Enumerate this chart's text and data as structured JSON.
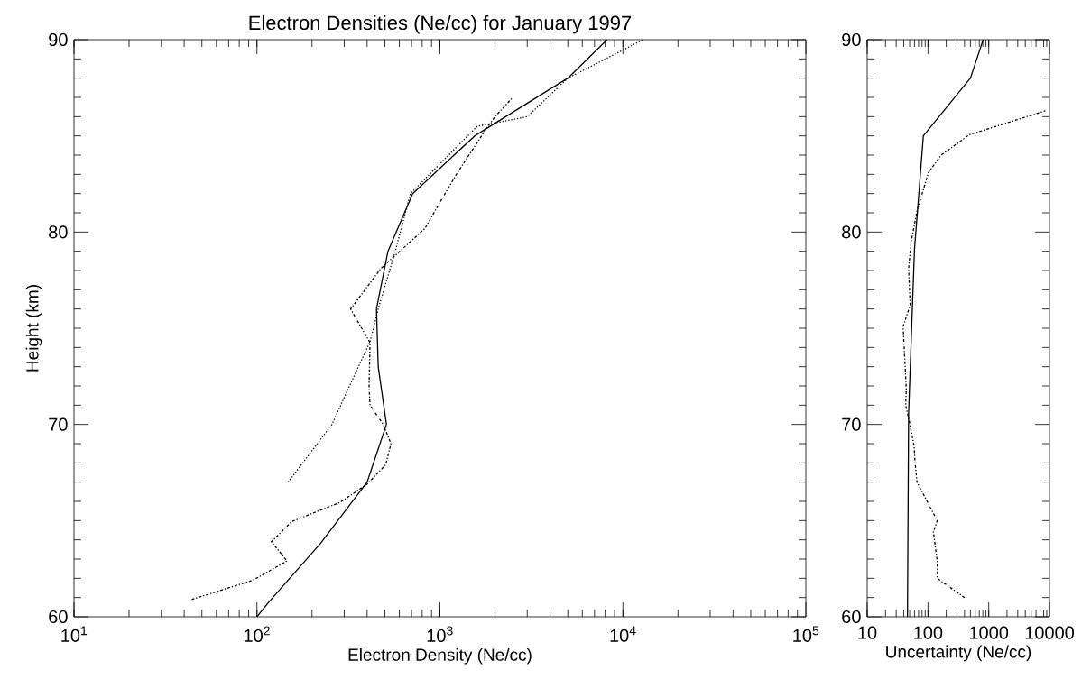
{
  "chart_data": [
    {
      "type": "line",
      "title": "Electron Densities (Ne/cc) for January 1997",
      "xlabel": "Electron Density (Ne/cc)",
      "ylabel": "Height (km)",
      "log": "x",
      "xlim": [
        10,
        100000
      ],
      "ylim": [
        60,
        90
      ],
      "xticks": [
        {
          "value": 10,
          "label": "10$^{1}$"
        },
        {
          "value": 100,
          "label": "10$^{2}$"
        },
        {
          "value": 1000,
          "label": "10$^{3}$"
        },
        {
          "value": 10000,
          "label": "10$^{4}$"
        },
        {
          "value": 100000,
          "label": "10$^{5}$"
        }
      ],
      "yticks": [
        60,
        70,
        80,
        90
      ],
      "series": [
        {
          "color": "#000000",
          "line_style": "solid",
          "x": [
            100,
            117,
            222,
            400,
            510,
            460,
            450,
            520,
            710,
            1550,
            5000,
            8200
          ],
          "values": [
            60,
            60.8,
            63.8,
            67,
            70,
            73,
            76,
            79,
            82,
            85,
            88,
            90
          ]
        },
        {
          "color": "#000000",
          "line_style": "dotted",
          "x": [
            148,
            257,
            310,
            415,
            460,
            570,
            690,
            1600,
            3000,
            5000,
            12900
          ],
          "values": [
            67,
            70,
            71.7,
            74.3,
            76,
            79,
            82,
            85.5,
            86,
            88,
            90
          ]
        },
        {
          "color": "#000000",
          "line_style": "dashdot",
          "x": [
            44,
            95,
            146,
            120,
            155,
            285,
            400,
            505,
            540,
            490,
            415,
            410,
            415,
            325,
            475,
            690,
            830,
            980,
            1230,
            1800,
            2000,
            2500
          ],
          "values": [
            60.9,
            61.9,
            62.9,
            63.9,
            64.95,
            65.95,
            66.9,
            67.9,
            69,
            70,
            71,
            72,
            74.25,
            76,
            78.1,
            79.5,
            80.2,
            81.4,
            83,
            85.4,
            86,
            87
          ]
        }
      ]
    },
    {
      "type": "line",
      "xlabel": "Uncertainty (Ne/cc)",
      "log": "x",
      "xlim": [
        10,
        10000
      ],
      "ylim": [
        60,
        90
      ],
      "xticks": [
        10,
        100,
        1000,
        10000
      ],
      "yticks": [
        60,
        70,
        80,
        90
      ],
      "series": [
        {
          "color": "#000000",
          "line_style": "solid",
          "x": [
            46,
            48,
            60,
            84,
            500,
            810
          ],
          "values": [
            60,
            70.6,
            79.1,
            85,
            88,
            90
          ]
        },
        {
          "color": "#000000",
          "line_style": "dashdot",
          "x": [
            400,
            142,
            142,
            123,
            142,
            66,
            61,
            59,
            49,
            43,
            44,
            39,
            51,
            48,
            53,
            66,
            102,
            165,
            480,
            8500
          ],
          "values": [
            61,
            62,
            62.9,
            64.4,
            65,
            67,
            68.1,
            68.9,
            70.2,
            71,
            71.8,
            75.1,
            76.2,
            78.1,
            79.5,
            81.1,
            83.1,
            84,
            85.06,
            86.3
          ]
        }
      ]
    }
  ]
}
